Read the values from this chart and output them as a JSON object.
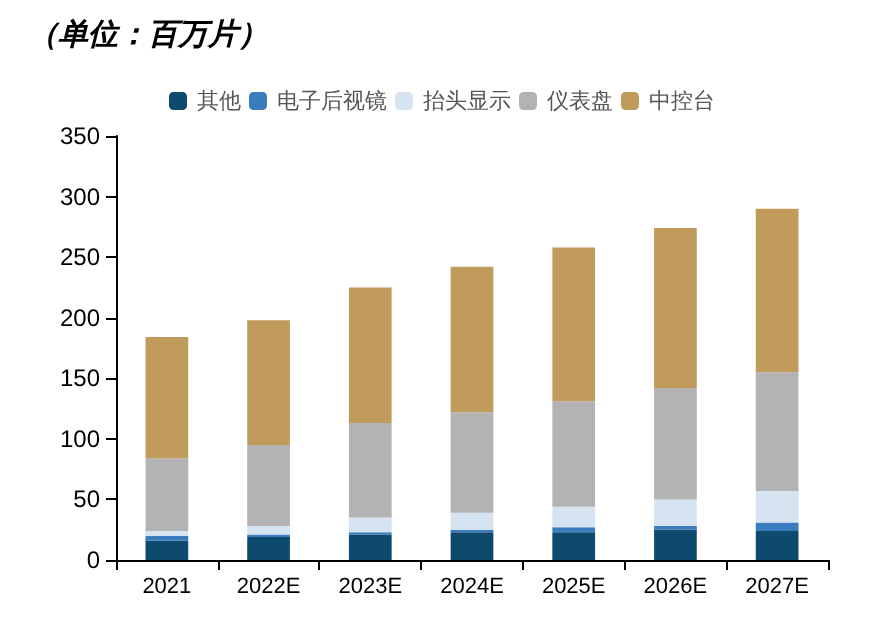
{
  "chart_data": {
    "type": "bar",
    "title": "（单位：百万片）",
    "stacked": true,
    "categories": [
      "2021",
      "2022E",
      "2023E",
      "2024E",
      "2025E",
      "2026E",
      "2027E"
    ],
    "series": [
      {
        "name": "其他",
        "color": "#0d4a6e",
        "values": [
          16,
          19,
          21,
          23,
          23,
          25,
          24
        ]
      },
      {
        "name": "电子后视镜",
        "color": "#3a7dbf",
        "values": [
          4,
          2,
          2,
          2,
          4,
          3,
          7
        ]
      },
      {
        "name": "抬头显示",
        "color": "#d6e4f2",
        "values": [
          4,
          7,
          12,
          14,
          17,
          22,
          26
        ]
      },
      {
        "name": "仪表盘",
        "color": "#b3b3b3",
        "values": [
          60,
          67,
          78,
          83,
          87,
          92,
          98
        ]
      },
      {
        "name": "中控台",
        "color": "#c09b5b",
        "values": [
          100,
          103,
          112,
          120,
          127,
          132,
          135
        ]
      }
    ],
    "ylim": [
      0,
      350
    ],
    "yticks": [
      0,
      50,
      100,
      150,
      200,
      250,
      300,
      350
    ],
    "grid": false,
    "legend": "top"
  }
}
